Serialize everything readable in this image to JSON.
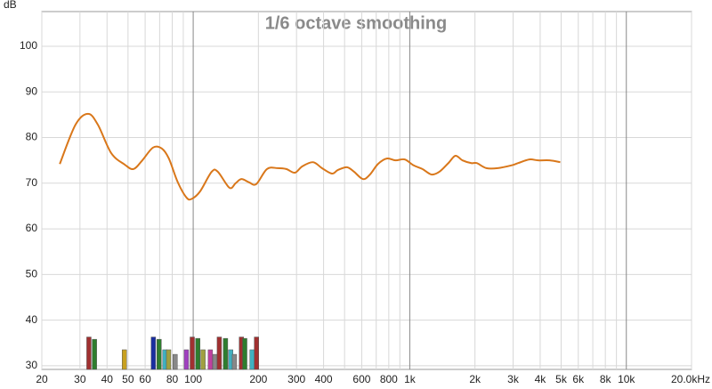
{
  "chart_data": {
    "type": "line",
    "title": "1/6 octave smoothing",
    "y_label": "dB",
    "xscale": "log",
    "xlim": [
      20,
      20000
    ],
    "ylim": [
      29.2,
      107.6
    ],
    "xticks": [
      20,
      30,
      40,
      50,
      60,
      80,
      100,
      200,
      300,
      400,
      600,
      800,
      {
        "value": 1000,
        "label": "1k"
      },
      {
        "value": 2000,
        "label": "2k"
      },
      {
        "value": 3000,
        "label": "3k"
      },
      {
        "value": 4000,
        "label": "4k"
      },
      {
        "value": 5000,
        "label": "5k"
      },
      {
        "value": 6000,
        "label": "6k"
      },
      {
        "value": 8000,
        "label": "8k"
      },
      {
        "value": 10000,
        "label": "10k"
      },
      {
        "value": 20000,
        "label": "20.0kHz"
      }
    ],
    "xminor": [
      70,
      90,
      500,
      700,
      900,
      7000,
      9000
    ],
    "yticks": [
      30,
      40,
      50,
      60,
      70,
      80,
      90,
      100
    ],
    "grid": true,
    "series": [
      {
        "color": "#d9771a",
        "x": [
          24.2,
          28.6,
          32.7,
          36.3,
          41.8,
          48.2,
          53,
          58.2,
          65.2,
          71.6,
          77.2,
          84.9,
          93.3,
          98.8,
          107.6,
          121.7,
          130,
          147,
          157,
          167,
          181,
          195.5,
          219,
          245,
          269,
          295,
          319,
          358,
          393,
          437,
          466,
          513,
          553,
          608,
          655,
          713,
          783,
          860,
          948,
          1042,
          1144,
          1259,
          1370,
          1507,
          1625,
          1753,
          1925,
          2040,
          2258,
          2550,
          2943,
          3165,
          3566,
          3914,
          4426,
          4953
        ],
        "values": [
          74.2,
          82.8,
          85.2,
          82.8,
          76.6,
          74.1,
          73.1,
          75.0,
          77.8,
          77.6,
          75.4,
          70.2,
          66.8,
          66.6,
          68.2,
          72.5,
          72.5,
          69.0,
          70.0,
          70.9,
          70.2,
          69.8,
          73.1,
          73.3,
          73.1,
          72.3,
          73.7,
          74.6,
          73.3,
          72.1,
          72.9,
          73.5,
          72.5,
          70.9,
          71.9,
          74.2,
          75.4,
          75.0,
          75.2,
          73.9,
          73.1,
          71.9,
          72.5,
          74.4,
          76.0,
          75.0,
          74.4,
          74.4,
          73.3,
          73.3,
          73.9,
          74.4,
          75.2,
          75.0,
          75.0,
          74.6
        ]
      }
    ],
    "bars": {
      "x": [
        33.0,
        35.0,
        48.1,
        65.5,
        69.6,
        74,
        77,
        82.5,
        93,
        99,
        105,
        111,
        120,
        126,
        132,
        141,
        149,
        155,
        167,
        173,
        187,
        196
      ],
      "values": [
        36.3,
        35.8,
        33.5,
        36.3,
        35.8,
        33.5,
        33.5,
        32.5,
        33.5,
        36.3,
        36.0,
        33.5,
        33.5,
        32.5,
        36.3,
        36.0,
        33.5,
        32.5,
        36.3,
        36.0,
        33.5,
        36.3
      ],
      "colors": [
        "#a03030",
        "#2e7d2e",
        "#c8a020",
        "#1a2ea0",
        "#2e7d2e",
        "#40b0c0",
        "#a0a040",
        "#888888",
        "#a040c0",
        "#a03030",
        "#2e7d2e",
        "#a0a040",
        "#c040a0",
        "#888888",
        "#a03030",
        "#2e7d2e",
        "#40b0c0",
        "#888888",
        "#a03030",
        "#2e7d2e",
        "#40b0c0",
        "#a03030"
      ]
    }
  }
}
